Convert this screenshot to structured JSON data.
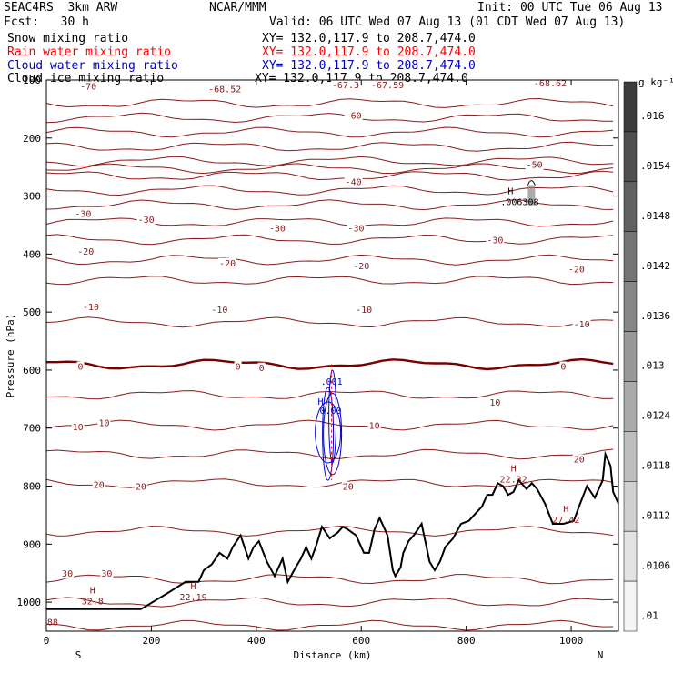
{
  "header": {
    "model": "SEAC4RS  3km ARW",
    "org": "NCAR/MMM",
    "init": "Init: 00 UTC Tue 06 Aug 13",
    "fcst": "Fcst:   30 h",
    "valid": "Valid: 06 UTC Wed 07 Aug 13 (01 CDT Wed 07 Aug 13)",
    "fields": [
      {
        "label": "Snow mixing ratio",
        "xy": "XY= 132.0,117.9 to 208.7,474.0",
        "color": "#000000"
      },
      {
        "label": "Rain water mixing ratio",
        "xy": "XY= 132.0,117.9 to 208.7,474.0",
        "color": "#ff0000"
      },
      {
        "label": "Cloud water mixing ratio",
        "xy": "XY= 132.0,117.9 to 208.7,474.0",
        "color": "#0000cc"
      },
      {
        "label": "Cloud ice mixing ratio",
        "xy": "XY= 132.0,117.9 to 208.7,474.0",
        "color": "#000000"
      }
    ]
  },
  "chart_data": {
    "type": "cross-section",
    "xlabel": "Distance (km)",
    "ylabel": "Pressure (hPa)",
    "xlim": [
      0,
      1090
    ],
    "ylim": [
      1050,
      100
    ],
    "x_ticks": [
      0,
      200,
      400,
      600,
      800,
      1000
    ],
    "y_ticks": [
      200,
      300,
      400,
      500,
      600,
      700,
      800,
      900,
      1000
    ],
    "y_top_label": "100",
    "x_end_labels": [
      "S",
      "N"
    ],
    "colorbar": {
      "unit": "g kg⁻¹",
      "labels": [
        ".016",
        ".0154",
        ".0148",
        ".0142",
        ".0136",
        ".013",
        ".0124",
        ".0118",
        ".0112",
        ".0106",
        ".01"
      ]
    },
    "temperature_contours": {
      "color": "#8b1a1a",
      "zero_color": "#7a0000",
      "levels": [
        {
          "t": -70,
          "p": 140
        },
        {
          "t": -60,
          "p": 190
        },
        {
          "t": -50,
          "p": 240
        },
        {
          "t": -40,
          "p": 265
        },
        {
          "t": -30,
          "p": 315
        },
        {
          "t": -20,
          "p": 375
        },
        {
          "t": -10,
          "p": 445
        },
        {
          "t": 0,
          "p": 590
        },
        {
          "t": 10,
          "p": 695
        },
        {
          "t": 20,
          "p": 795
        },
        {
          "t": 30,
          "p": 960
        }
      ],
      "labels": [
        {
          "text": "-70",
          "x": 80,
          "p": 110
        },
        {
          "text": "-68.52",
          "x": 340,
          "p": 115
        },
        {
          "text": "-67.3",
          "x": 570,
          "p": 108
        },
        {
          "text": "-67.59",
          "x": 650,
          "p": 108
        },
        {
          "text": "-68.62",
          "x": 960,
          "p": 105
        },
        {
          "text": "-60",
          "x": 585,
          "p": 160
        },
        {
          "text": "-50",
          "x": 930,
          "p": 245
        },
        {
          "text": "-40",
          "x": 585,
          "p": 275
        },
        {
          "text": "-30",
          "x": 70,
          "p": 330
        },
        {
          "text": "-30",
          "x": 190,
          "p": 340
        },
        {
          "text": "-30",
          "x": 440,
          "p": 355
        },
        {
          "text": "-30",
          "x": 590,
          "p": 355
        },
        {
          "text": "-30",
          "x": 855,
          "p": 375
        },
        {
          "text": "-20",
          "x": 75,
          "p": 395
        },
        {
          "text": "-20",
          "x": 345,
          "p": 415
        },
        {
          "text": "-20",
          "x": 600,
          "p": 420
        },
        {
          "text": "-20",
          "x": 1010,
          "p": 425
        },
        {
          "text": "-10",
          "x": 85,
          "p": 490
        },
        {
          "text": "-10",
          "x": 330,
          "p": 495
        },
        {
          "text": "-10",
          "x": 605,
          "p": 495
        },
        {
          "text": "-10",
          "x": 1020,
          "p": 520
        },
        {
          "text": "0",
          "x": 65,
          "p": 593
        },
        {
          "text": "0",
          "x": 365,
          "p": 593
        },
        {
          "text": "0",
          "x": 410,
          "p": 595
        },
        {
          "text": "0",
          "x": 985,
          "p": 593
        },
        {
          "text": "10",
          "x": 60,
          "p": 697
        },
        {
          "text": "10",
          "x": 110,
          "p": 690
        },
        {
          "text": "10",
          "x": 625,
          "p": 695
        },
        {
          "text": "10",
          "x": 855,
          "p": 655
        },
        {
          "text": "20",
          "x": 100,
          "p": 797
        },
        {
          "text": "20",
          "x": 180,
          "p": 800
        },
        {
          "text": "20",
          "x": 575,
          "p": 800
        },
        {
          "text": "20",
          "x": 1015,
          "p": 753
        },
        {
          "text": "30",
          "x": 40,
          "p": 950
        },
        {
          "text": "30",
          "x": 115,
          "p": 950
        }
      ],
      "extrema": [
        {
          "text": "H",
          "value": "32.8",
          "x": 88,
          "p": 985
        },
        {
          "text": "H",
          "value": "22.19",
          "x": 280,
          "p": 978
        },
        {
          "text": "H",
          "value": "22.32",
          "x": 890,
          "p": 775
        },
        {
          "text": "H",
          "value": "27.42",
          "x": 990,
          "p": 845
        },
        {
          "text": "88",
          "x": 12,
          "p": 1040
        }
      ]
    },
    "snow_max": {
      "text": "H",
      "value": ".006308",
      "x": 900,
      "p": 300
    },
    "cloud_water_label": ".001",
    "cloud_water_max": {
      "text": "H",
      "value": "0.00",
      "x": 538,
      "p": 660
    },
    "terrain": [
      [
        0,
        1012
      ],
      [
        180,
        1012
      ],
      [
        230,
        985
      ],
      [
        265,
        965
      ],
      [
        290,
        965
      ],
      [
        300,
        945
      ],
      [
        315,
        935
      ],
      [
        330,
        915
      ],
      [
        345,
        925
      ],
      [
        355,
        905
      ],
      [
        370,
        885
      ],
      [
        385,
        925
      ],
      [
        395,
        905
      ],
      [
        405,
        895
      ],
      [
        420,
        930
      ],
      [
        435,
        955
      ],
      [
        450,
        925
      ],
      [
        460,
        965
      ],
      [
        475,
        940
      ],
      [
        485,
        925
      ],
      [
        495,
        905
      ],
      [
        505,
        925
      ],
      [
        515,
        900
      ],
      [
        525,
        870
      ],
      [
        540,
        890
      ],
      [
        555,
        880
      ],
      [
        565,
        870
      ],
      [
        575,
        875
      ],
      [
        590,
        885
      ],
      [
        605,
        915
      ],
      [
        615,
        915
      ],
      [
        625,
        875
      ],
      [
        635,
        855
      ],
      [
        650,
        885
      ],
      [
        660,
        945
      ],
      [
        665,
        955
      ],
      [
        675,
        940
      ],
      [
        680,
        915
      ],
      [
        690,
        895
      ],
      [
        700,
        885
      ],
      [
        715,
        865
      ],
      [
        730,
        930
      ],
      [
        740,
        945
      ],
      [
        750,
        930
      ],
      [
        760,
        905
      ],
      [
        775,
        890
      ],
      [
        790,
        865
      ],
      [
        805,
        860
      ],
      [
        820,
        845
      ],
      [
        830,
        835
      ],
      [
        840,
        815
      ],
      [
        850,
        815
      ],
      [
        860,
        795
      ],
      [
        870,
        800
      ],
      [
        880,
        815
      ],
      [
        890,
        810
      ],
      [
        900,
        790
      ],
      [
        915,
        805
      ],
      [
        925,
        795
      ],
      [
        935,
        805
      ],
      [
        950,
        830
      ],
      [
        965,
        865
      ],
      [
        985,
        865
      ],
      [
        1005,
        860
      ],
      [
        1015,
        835
      ],
      [
        1030,
        800
      ],
      [
        1045,
        820
      ],
      [
        1060,
        790
      ],
      [
        1065,
        745
      ],
      [
        1075,
        765
      ],
      [
        1080,
        810
      ],
      [
        1090,
        830
      ]
    ]
  }
}
